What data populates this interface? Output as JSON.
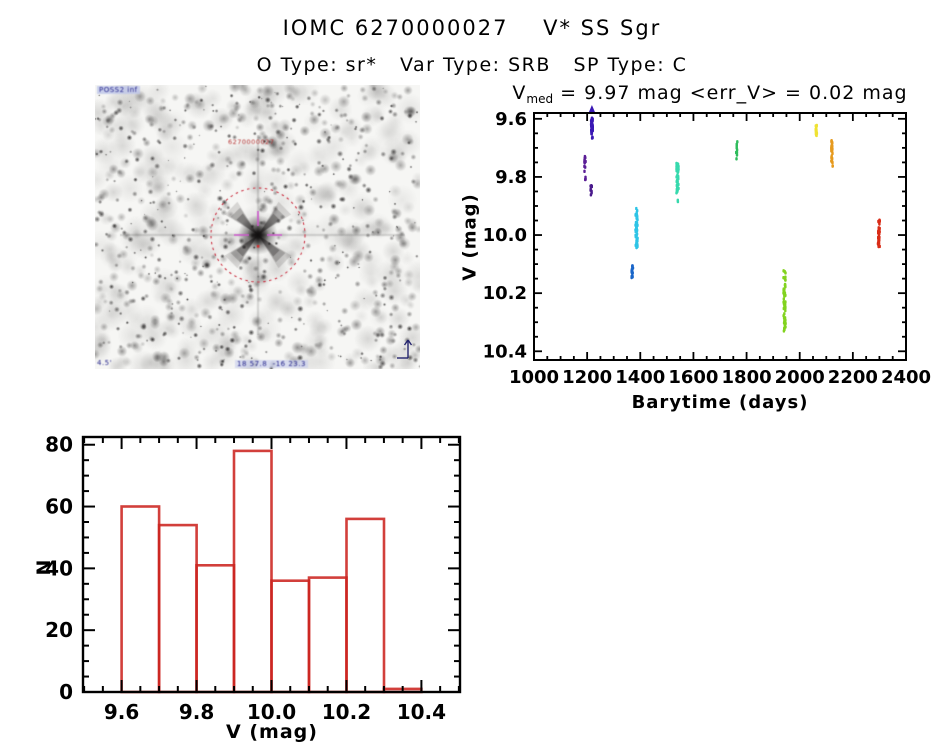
{
  "header": {
    "title": "IOMC 6270000027    V* SS Sgr",
    "subtitle": "O Type: sr*   Var Type: SRB   SP Type: C"
  },
  "finding_chart": {
    "survey_label": "POSS2 inf",
    "source_id": "6270000027",
    "coordinates": "18 57.8  -16 23.3",
    "scale_label": "4.5'"
  },
  "chart_data": [
    {
      "id": "light_curve",
      "type": "scatter",
      "title": {
        "var": "V",
        "sub": "med",
        "rest": " = 9.97 mag <err_V> = 0.02 mag"
      },
      "xlabel": "Barytime (days)",
      "ylabel": "V (mag)",
      "xlim": [
        1000,
        2400
      ],
      "y_top": 9.58,
      "y_bottom": 10.43,
      "xticks": [
        "1000",
        "1200",
        "1400",
        "1600",
        "1800",
        "2000",
        "2200",
        "2400"
      ],
      "yticks": [
        "9.6",
        "9.8",
        "10.0",
        "10.2",
        "10.4"
      ],
      "x_minor_step": 50,
      "y_minor_step": 0.05,
      "grid": false,
      "legend": "none",
      "clusters": [
        {
          "x": 1192,
          "y": [
            9.73,
            9.785
          ],
          "n": 10,
          "spread": 6,
          "color": "#5b1e96"
        },
        {
          "x": 1194,
          "y": [
            9.8,
            9.815
          ],
          "n": 3,
          "spread": 3,
          "color": "#5b1e96"
        },
        {
          "x": 1215,
          "y": [
            9.828,
            9.868
          ],
          "n": 9,
          "spread": 5,
          "color": "#4a1a8c"
        },
        {
          "x": 1218,
          "y": [
            9.597,
            9.655
          ],
          "n": 34,
          "spread": 7,
          "color": "#3a18b4"
        },
        {
          "x": 1220,
          "y": [
            9.662,
            9.672
          ],
          "n": 3,
          "spread": 4,
          "color": "#3a18b4"
        },
        {
          "x": 1370,
          "y": [
            10.103,
            10.148
          ],
          "n": 22,
          "spread": 6,
          "color": "#1a66c9"
        },
        {
          "x": 1386,
          "y": [
            9.905,
            10.045
          ],
          "n": 48,
          "spread": 8,
          "color": "#2ec4e6"
        },
        {
          "x": 1540,
          "y": [
            9.743,
            9.858
          ],
          "n": 46,
          "spread": 8,
          "color": "#36d9ad"
        },
        {
          "x": 1542,
          "y": [
            9.878,
            9.888
          ],
          "n": 2,
          "spread": 2,
          "color": "#36d9ad"
        },
        {
          "x": 1763,
          "y": [
            9.678,
            9.748
          ],
          "n": 11,
          "spread": 5,
          "color": "#2fbc5c"
        },
        {
          "x": 1943,
          "y": [
            10.112,
            10.33
          ],
          "n": 58,
          "spread": 8,
          "color": "#82d31f"
        },
        {
          "x": 2063,
          "y": [
            9.622,
            9.662
          ],
          "n": 18,
          "spread": 6,
          "color": "#efe233"
        },
        {
          "x": 2121,
          "y": [
            9.672,
            9.752
          ],
          "n": 24,
          "spread": 5,
          "color": "#e69a1e"
        },
        {
          "x": 2123,
          "y": [
            9.758,
            9.768
          ],
          "n": 2,
          "spread": 2,
          "color": "#e69a1e"
        },
        {
          "x": 2298,
          "y": [
            9.943,
            10.042
          ],
          "n": 32,
          "spread": 7,
          "color": "#d92c17"
        }
      ],
      "clipped_above": {
        "x": 1218,
        "color": "#3a18b4"
      }
    },
    {
      "id": "histogram",
      "type": "bar",
      "xlabel": "V (mag)",
      "ylabel": "N",
      "bin_start": 9.6,
      "bin_width": 0.1,
      "categories": [
        "9.6-9.7",
        "9.7-9.8",
        "9.8-9.9",
        "9.9-10.0",
        "10.0-10.1",
        "10.1-10.2",
        "10.2-10.3",
        "10.3-10.4"
      ],
      "values": [
        60,
        54,
        41,
        78,
        36,
        37,
        56,
        1
      ],
      "xlim": [
        9.497,
        10.503
      ],
      "ylim": [
        0,
        82.5
      ],
      "xticks": [
        "9.6",
        "9.8",
        "10.0",
        "10.2",
        "10.4"
      ],
      "yticks": [
        "0",
        "20",
        "40",
        "60",
        "80"
      ],
      "x_minor_step": 0.05,
      "y_minor_step": 5,
      "grid": false,
      "color": "#cc2420"
    }
  ],
  "colors": {
    "axis": "#000000",
    "background": "#ffffff",
    "histogram_red": "#cc2420",
    "circle_red": "#cc3344",
    "crosshair_magenta": "#cf5ccf"
  }
}
